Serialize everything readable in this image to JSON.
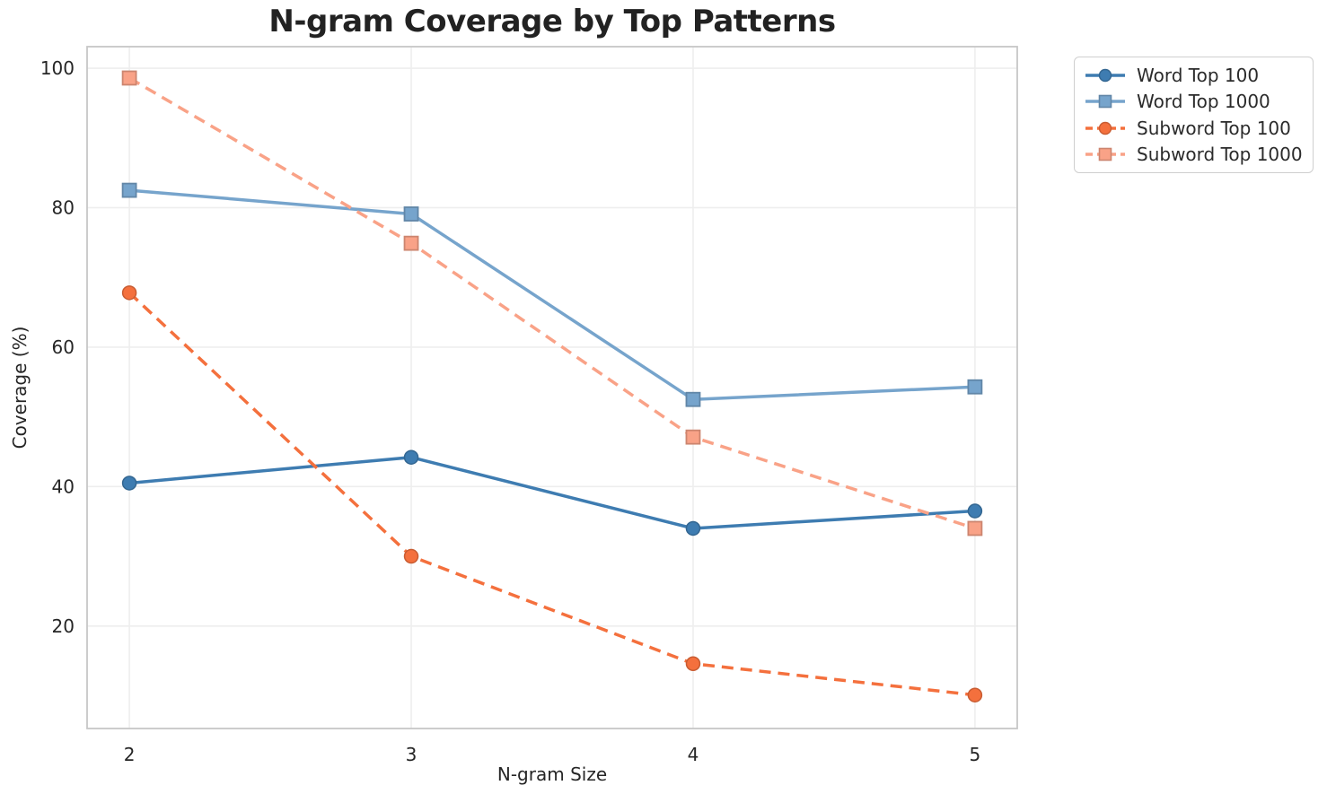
{
  "chart_data": {
    "type": "line",
    "title": "N-gram Coverage by Top Patterns",
    "xlabel": "N-gram Size",
    "ylabel": "Coverage (%)",
    "x": [
      2,
      3,
      4,
      5
    ],
    "x_tick_labels": [
      "2",
      "3",
      "4",
      "5"
    ],
    "y_ticks": [
      20,
      40,
      60,
      80,
      100
    ],
    "xlim": [
      1.85,
      5.15
    ],
    "ylim": [
      5.3,
      103.1
    ],
    "grid": true,
    "legend_position": "outside-top-right",
    "colors": {
      "word_top_100": "#3e7cb1",
      "word_top_1000": "#76a4cc",
      "subword_top_100": "#f4703d",
      "subword_top_1000": "#f9a287",
      "gridline": "#eeeeee",
      "spine": "#c7c7c7"
    },
    "series": [
      {
        "name": "Word Top 100",
        "color": "#3e7cb1",
        "style": "solid",
        "marker": "circle",
        "values": [
          40.5,
          44.2,
          34.0,
          36.5
        ]
      },
      {
        "name": "Word Top 1000",
        "color": "#76a4cc",
        "style": "solid",
        "marker": "square",
        "values": [
          82.5,
          79.1,
          52.5,
          54.3
        ]
      },
      {
        "name": "Subword Top 100",
        "color": "#f4703d",
        "style": "dashed",
        "marker": "circle",
        "values": [
          67.8,
          30.0,
          14.6,
          10.1
        ]
      },
      {
        "name": "Subword Top 1000",
        "color": "#f9a287",
        "style": "dashed",
        "marker": "square",
        "values": [
          98.6,
          74.9,
          47.1,
          34.0
        ]
      }
    ]
  }
}
